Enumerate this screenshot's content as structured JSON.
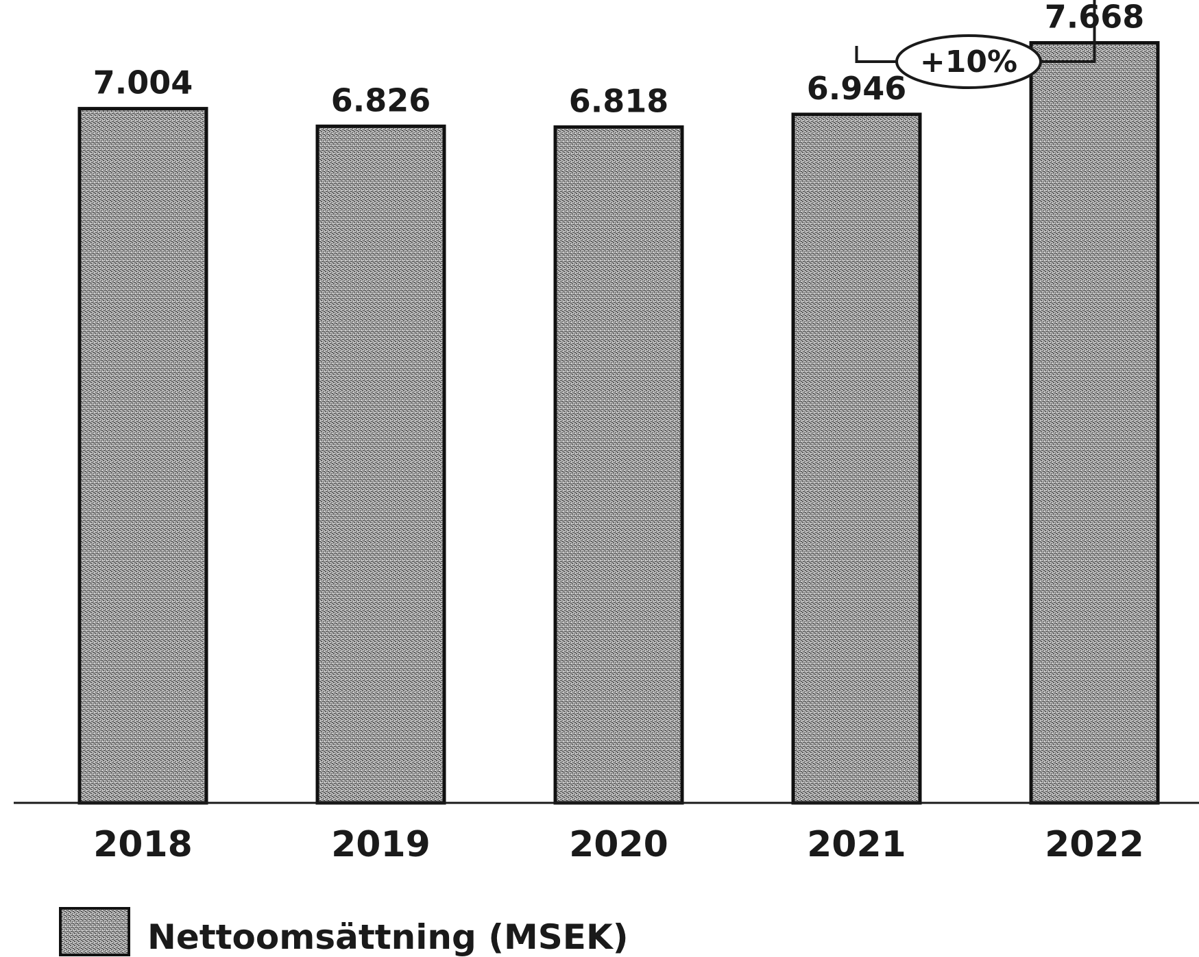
{
  "chart_data": {
    "type": "bar",
    "categories": [
      "2018",
      "2019",
      "2020",
      "2021",
      "2022"
    ],
    "values": [
      7004,
      6826,
      6818,
      6946,
      7668
    ],
    "value_labels": [
      "7.004",
      "6.826",
      "6.818",
      "6.946",
      "7.668"
    ],
    "series": [
      {
        "name": "Nettoomsättning (MSEK)",
        "values": [
          7004,
          6826,
          6818,
          6946,
          7668
        ]
      }
    ],
    "annotations": [
      {
        "text": "+10%",
        "from": "2021",
        "to": "2022"
      }
    ],
    "title": "",
    "xlabel": "",
    "ylabel": "",
    "ylim": [
      0,
      8100
    ],
    "grid": false,
    "legend_position": "bottom-left",
    "colors": {
      "bar_fill": "#9a9a9a",
      "bar_edge": "#111111"
    }
  }
}
